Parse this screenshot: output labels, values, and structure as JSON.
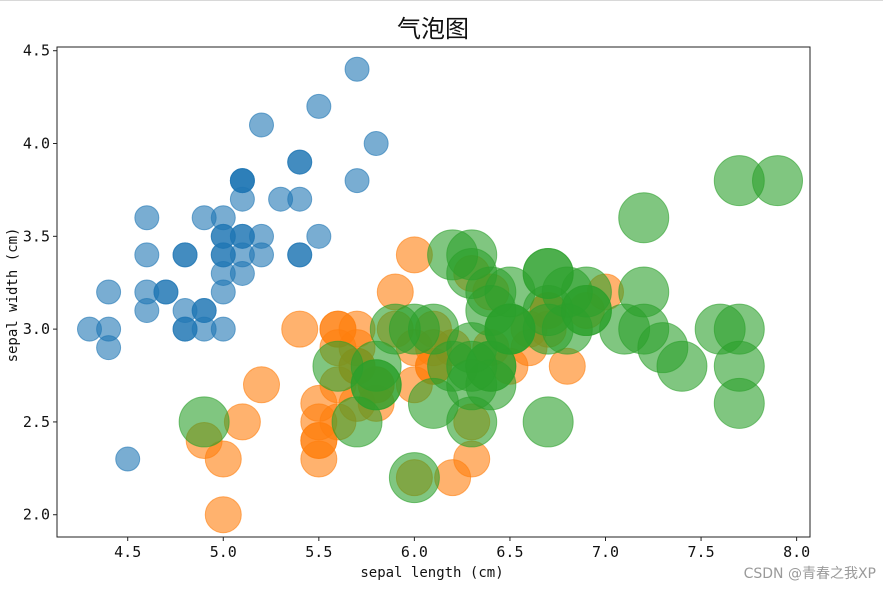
{
  "chart_data": {
    "type": "scatter",
    "title": "气泡图",
    "xlabel": "sepal length (cm)",
    "ylabel": "sepal width (cm)",
    "xlim": [
      4.13,
      8.07
    ],
    "ylim": [
      1.88,
      4.52
    ],
    "xticks": [
      "4.5",
      "5.0",
      "5.5",
      "6.0",
      "6.5",
      "7.0",
      "7.5",
      "8.0"
    ],
    "yticks": [
      "2.0",
      "2.5",
      "3.0",
      "3.5",
      "4.0",
      "4.5"
    ],
    "grid": false,
    "colors": [
      "#1f77b4",
      "#ff7f0e",
      "#2ca02c"
    ],
    "series": [
      {
        "color": "#1f77b4",
        "bubble_size": 1,
        "x": [
          5.1,
          4.9,
          4.7,
          4.6,
          5.0,
          5.4,
          4.6,
          5.0,
          4.4,
          4.9,
          5.4,
          4.8,
          4.8,
          4.3,
          5.8,
          5.7,
          5.4,
          5.1,
          5.7,
          5.1,
          5.4,
          5.1,
          4.6,
          5.1,
          4.8,
          5.0,
          5.0,
          5.2,
          5.2,
          4.7,
          4.8,
          5.4,
          5.2,
          5.5,
          4.9,
          5.0,
          5.5,
          4.9,
          4.4,
          5.1,
          5.0,
          4.5,
          4.4,
          5.0,
          5.1,
          4.8,
          5.1,
          4.6,
          5.3,
          5.0
        ],
        "y": [
          3.5,
          3.0,
          3.2,
          3.1,
          3.6,
          3.9,
          3.4,
          3.4,
          2.9,
          3.1,
          3.7,
          3.4,
          3.0,
          3.0,
          4.0,
          4.4,
          3.9,
          3.5,
          3.8,
          3.8,
          3.4,
          3.7,
          3.6,
          3.3,
          3.4,
          3.0,
          3.4,
          3.5,
          3.4,
          3.2,
          3.1,
          3.4,
          4.1,
          4.2,
          3.1,
          3.2,
          3.5,
          3.6,
          3.0,
          3.4,
          3.5,
          2.3,
          3.2,
          3.5,
          3.8,
          3.0,
          3.8,
          3.2,
          3.7,
          3.3
        ]
      },
      {
        "color": "#ff7f0e",
        "bubble_size": 2,
        "x": [
          7.0,
          6.4,
          6.9,
          5.5,
          6.5,
          5.7,
          6.3,
          4.9,
          6.6,
          5.2,
          5.0,
          5.9,
          6.0,
          6.1,
          5.6,
          6.7,
          5.6,
          5.8,
          6.2,
          5.6,
          5.9,
          6.1,
          6.3,
          6.1,
          6.4,
          6.6,
          6.8,
          6.7,
          6.0,
          5.7,
          5.5,
          5.5,
          5.8,
          6.0,
          5.4,
          6.0,
          6.7,
          6.3,
          5.6,
          5.5,
          5.5,
          6.1,
          5.8,
          5.0,
          5.6,
          5.7,
          5.7,
          6.2,
          5.1,
          5.7
        ],
        "y": [
          3.2,
          3.2,
          3.1,
          2.3,
          2.8,
          2.8,
          3.3,
          2.4,
          2.9,
          2.7,
          2.0,
          3.0,
          2.2,
          2.9,
          2.9,
          3.1,
          3.0,
          2.7,
          2.2,
          2.5,
          3.2,
          2.8,
          2.5,
          2.8,
          2.9,
          3.0,
          2.8,
          3.0,
          2.9,
          2.6,
          2.4,
          2.4,
          2.7,
          2.7,
          3.0,
          3.4,
          3.1,
          2.3,
          3.0,
          2.5,
          2.6,
          3.0,
          2.6,
          2.3,
          2.7,
          3.0,
          2.9,
          2.9,
          2.5,
          2.8
        ]
      },
      {
        "color": "#2ca02c",
        "bubble_size": 3,
        "x": [
          6.3,
          5.8,
          7.1,
          6.3,
          6.5,
          7.6,
          4.9,
          7.3,
          6.7,
          7.2,
          6.5,
          6.4,
          6.8,
          5.7,
          5.8,
          6.4,
          6.5,
          7.7,
          7.7,
          6.0,
          6.9,
          5.6,
          7.7,
          6.3,
          6.7,
          7.2,
          6.2,
          6.1,
          6.4,
          7.2,
          7.4,
          7.9,
          6.4,
          6.3,
          6.1,
          7.7,
          6.3,
          6.4,
          6.0,
          6.9,
          6.7,
          6.9,
          5.8,
          6.8,
          6.7,
          6.7,
          6.3,
          6.5,
          6.2,
          5.9
        ],
        "y": [
          3.3,
          2.7,
          3.0,
          2.9,
          3.0,
          3.0,
          2.5,
          2.9,
          2.5,
          3.6,
          3.2,
          2.7,
          3.0,
          2.5,
          2.8,
          3.2,
          3.0,
          3.8,
          2.6,
          2.2,
          3.2,
          2.8,
          2.8,
          2.7,
          3.3,
          3.2,
          2.8,
          3.0,
          2.8,
          3.0,
          2.8,
          3.8,
          2.8,
          2.8,
          2.6,
          3.0,
          3.4,
          3.1,
          3.0,
          3.1,
          3.1,
          3.1,
          2.7,
          3.2,
          3.3,
          3.0,
          2.5,
          3.0,
          3.4,
          3.0
        ]
      }
    ]
  },
  "watermark": "CSDN @青春之我XP"
}
